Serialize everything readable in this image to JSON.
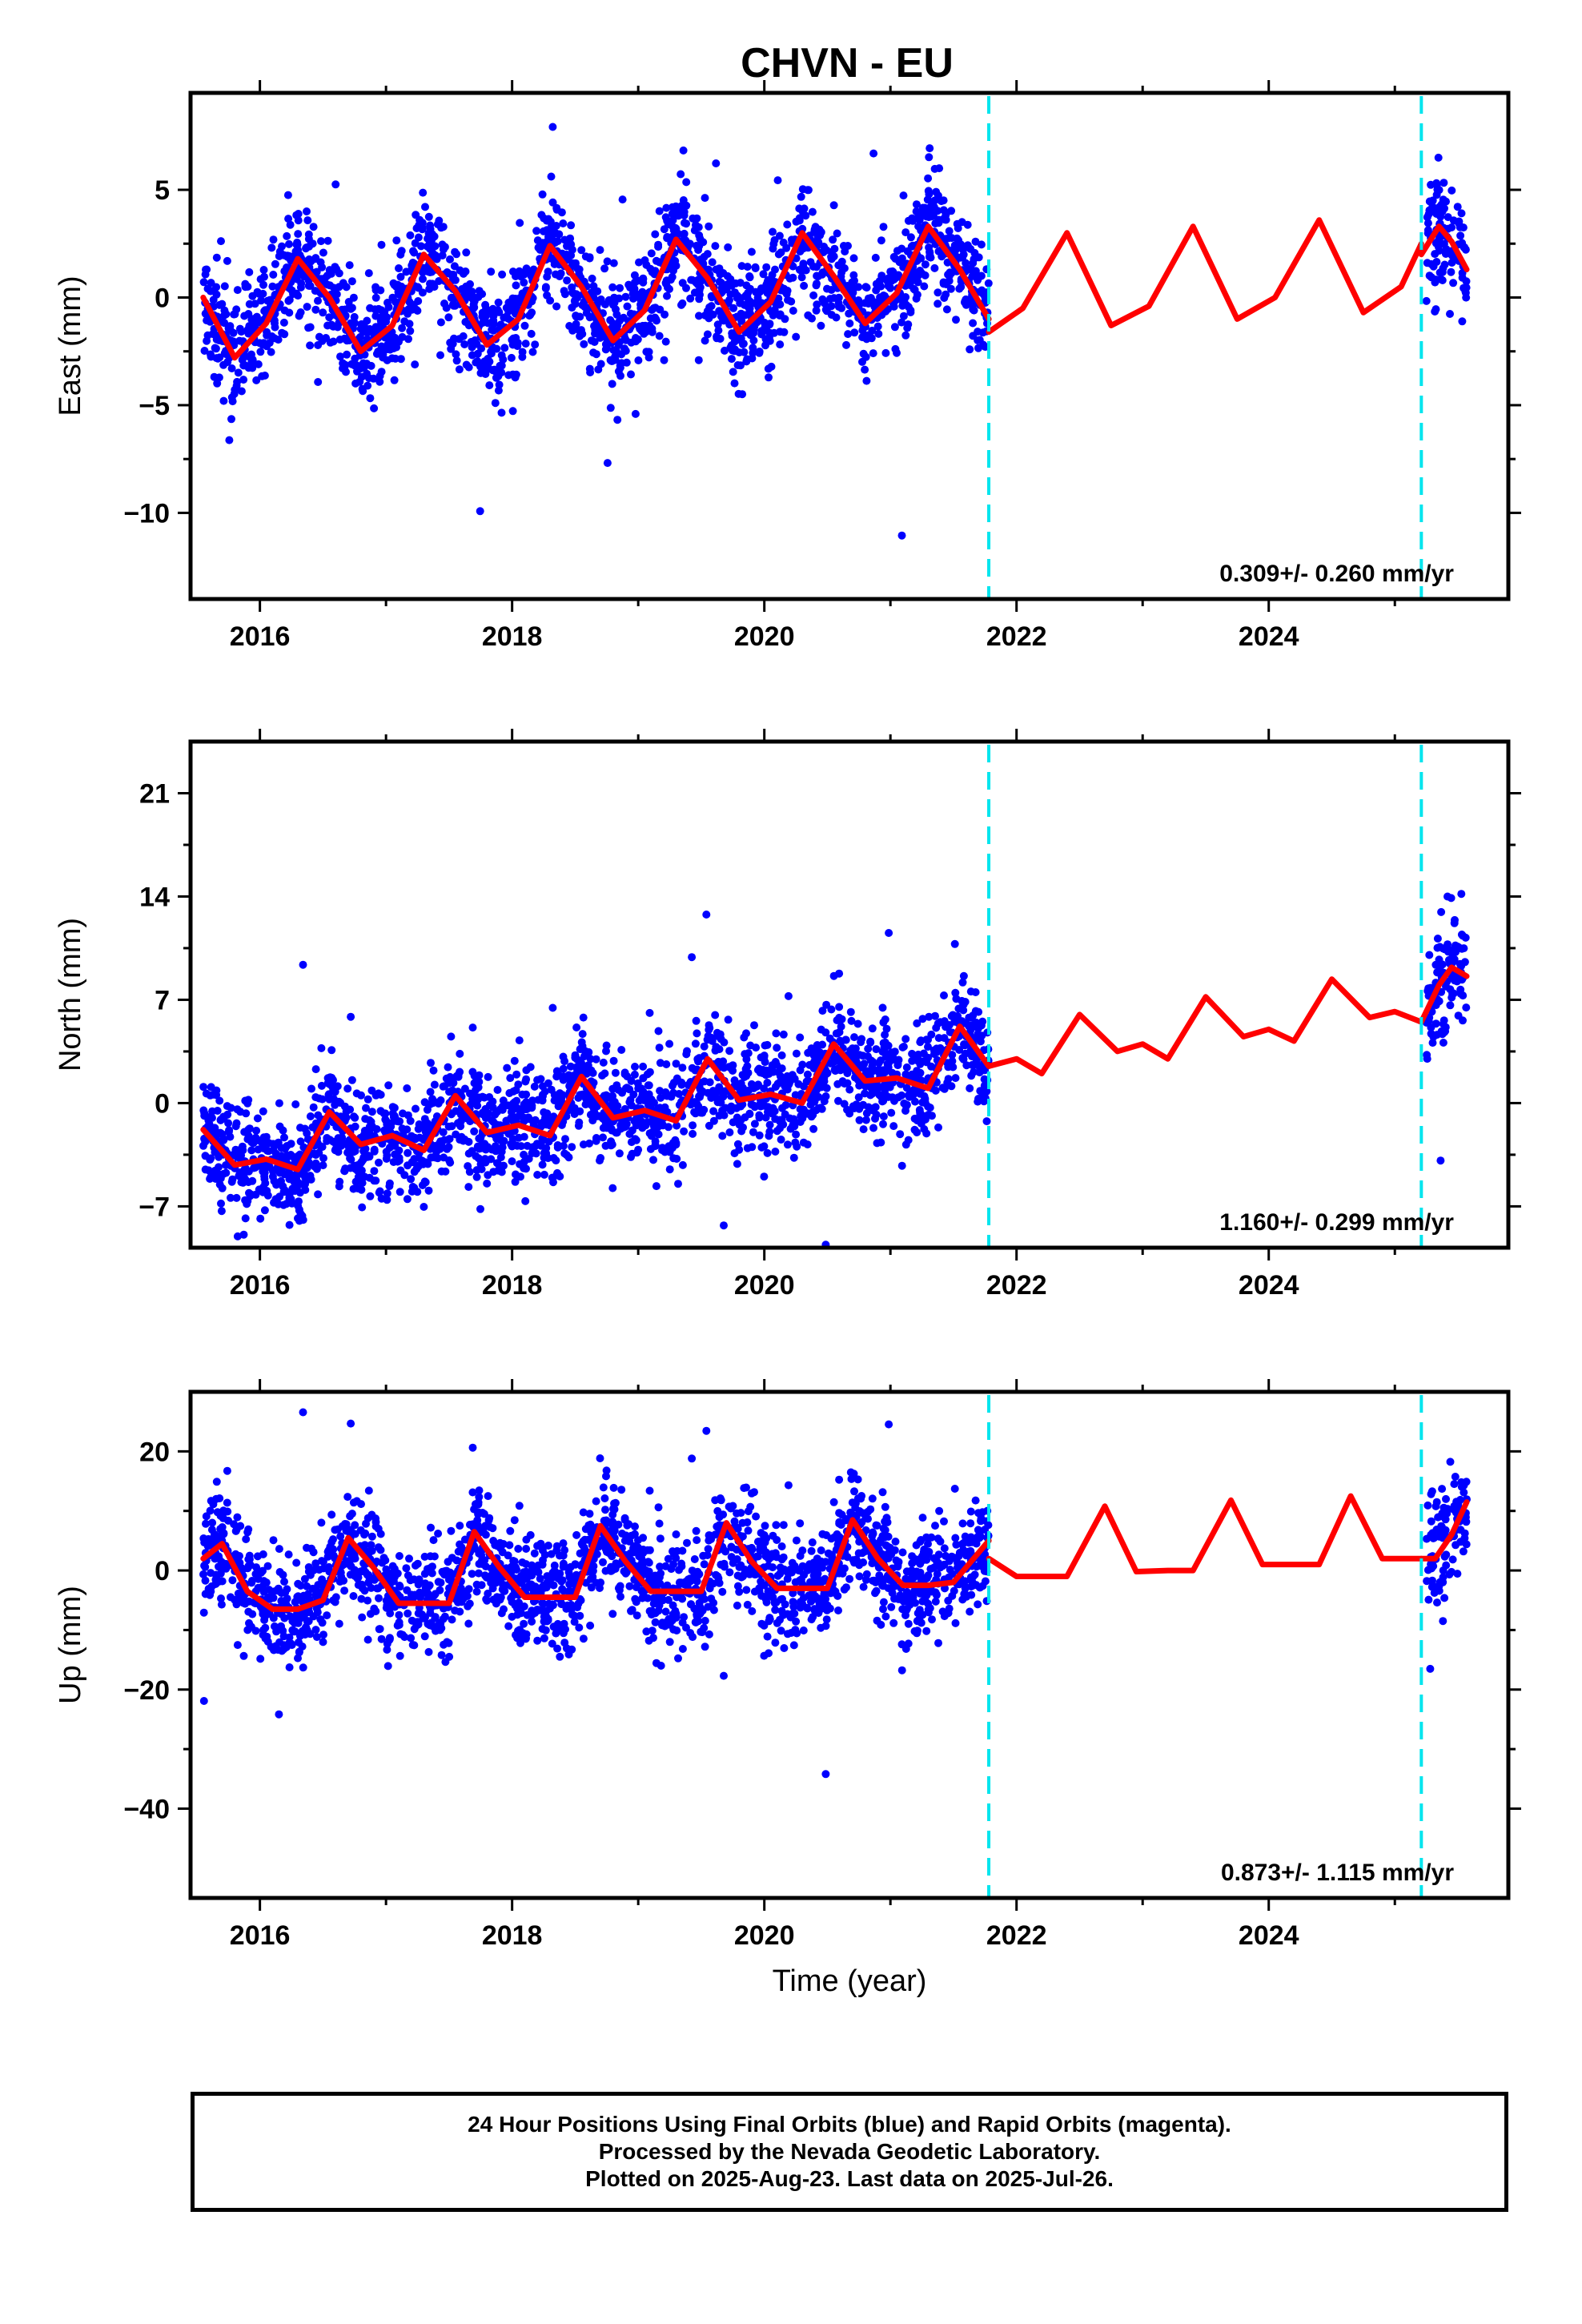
{
  "title": "CHVN - EU",
  "colors": {
    "data": "#0000ff",
    "model": "#ff0000",
    "break": "#00e5ee",
    "axis": "#000000"
  },
  "footer": {
    "lines": [
      "24 Hour Positions Using Final Orbits (blue) and Rapid Orbits (magenta).",
      "Processed by the Nevada Geodetic Laboratory.",
      "Plotted on 2025-Aug-23. Last data on 2025-Jul-26."
    ]
  },
  "chart_data": [
    {
      "type": "scatter",
      "name": "east",
      "ylabel": "East (mm)",
      "xlabel": "",
      "xlim": [
        2015.45,
        2025.9
      ],
      "ylim": [
        -14,
        9.5
      ],
      "xticks": [
        2016,
        2018,
        2020,
        2022,
        2024
      ],
      "yticks": [
        -10,
        -5,
        0,
        5
      ],
      "rate_label": "0.309+/- 0.260 mm/yr",
      "breaks": [
        2021.78,
        2025.21
      ],
      "data_ranges": [
        [
          2015.55,
          2021.78
        ],
        [
          2025.25,
          2025.57
        ]
      ],
      "model": {
        "segments": [
          {
            "x": [
              2015.55,
              2015.8,
              2016.05,
              2016.3,
              2016.55,
              2016.8,
              2017.05,
              2017.3,
              2017.55,
              2017.8,
              2018.05,
              2018.3,
              2018.55,
              2018.8,
              2019.05,
              2019.3,
              2019.55,
              2019.8,
              2020.05,
              2020.3,
              2020.55,
              2020.8,
              2021.05,
              2021.3,
              2021.55,
              2021.78
            ],
            "y": [
              0.0,
              -2.8,
              -1.2,
              1.8,
              0.0,
              -2.5,
              -1.3,
              2.0,
              0.3,
              -2.2,
              -1.0,
              2.4,
              0.5,
              -2.0,
              -0.6,
              2.7,
              0.9,
              -1.6,
              -0.2,
              3.0,
              1.0,
              -1.2,
              0.2,
              3.3,
              1.3,
              -1.0
            ]
          },
          {
            "x": [
              2021.78,
              2022.05,
              2022.4,
              2022.75,
              2023.05,
              2023.4,
              2023.75,
              2024.05,
              2024.4,
              2024.75,
              2025.05,
              2025.21
            ],
            "y": [
              -1.6,
              -0.5,
              3.0,
              -1.3,
              -0.4,
              3.3,
              -1.0,
              0.0,
              3.6,
              -0.7,
              0.5,
              2.5
            ]
          },
          {
            "x": [
              2025.21,
              2025.35,
              2025.45,
              2025.57
            ],
            "y": [
              2.0,
              3.3,
              2.6,
              1.3
            ]
          }
        ]
      }
    },
    {
      "type": "scatter",
      "name": "north",
      "ylabel": "North (mm)",
      "xlabel": "",
      "xlim": [
        2015.45,
        2025.9
      ],
      "ylim": [
        -9.8,
        24.5
      ],
      "xticks": [
        2016,
        2018,
        2020,
        2022,
        2024
      ],
      "yticks": [
        -7,
        0,
        7,
        14,
        21
      ],
      "rate_label": "1.160+/- 0.299 mm/yr",
      "breaks": [
        2021.78,
        2025.21
      ],
      "data_ranges": [
        [
          2015.55,
          2021.78
        ],
        [
          2025.25,
          2025.57
        ]
      ],
      "model": {
        "segments": [
          {
            "x": [
              2015.55,
              2015.8,
              2016.05,
              2016.3,
              2016.55,
              2016.8,
              2017.05,
              2017.3,
              2017.55,
              2017.8,
              2018.05,
              2018.3,
              2018.55,
              2018.8,
              2019.05,
              2019.3,
              2019.55,
              2019.8,
              2020.05,
              2020.3,
              2020.55,
              2020.8,
              2021.05,
              2021.3,
              2021.55,
              2021.78
            ],
            "y": [
              -1.8,
              -4.2,
              -3.8,
              -4.5,
              -0.6,
              -2.8,
              -2.2,
              -3.2,
              0.5,
              -2.0,
              -1.5,
              -2.2,
              1.8,
              -1.0,
              -0.5,
              -1.2,
              3.0,
              0.2,
              0.6,
              0.0,
              4.0,
              1.5,
              1.7,
              1.0,
              5.2,
              2.5
            ]
          },
          {
            "x": [
              2021.78,
              2022.0,
              2022.2,
              2022.5,
              2022.8,
              2023.0,
              2023.2,
              2023.5,
              2023.8,
              2024.0,
              2024.2,
              2024.5,
              2024.8,
              2025.0,
              2025.21
            ],
            "y": [
              2.5,
              3.0,
              2.0,
              6.0,
              3.5,
              4.0,
              3.0,
              7.2,
              4.5,
              5.0,
              4.2,
              8.4,
              5.8,
              6.2,
              5.5
            ]
          },
          {
            "x": [
              2025.21,
              2025.35,
              2025.45,
              2025.57
            ],
            "y": [
              5.5,
              8.0,
              9.2,
              8.6
            ]
          }
        ]
      }
    },
    {
      "type": "scatter",
      "name": "up",
      "ylabel": "Up (mm)",
      "xlabel": "Time (year)",
      "xlim": [
        2015.45,
        2025.9
      ],
      "ylim": [
        -55,
        30
      ],
      "xticks": [
        2016,
        2018,
        2020,
        2022,
        2024
      ],
      "yticks": [
        -40,
        -20,
        0,
        20
      ],
      "rate_label": "0.873+/- 1.115 mm/yr",
      "breaks": [
        2021.78,
        2025.21
      ],
      "data_ranges": [
        [
          2015.55,
          2021.78
        ],
        [
          2025.25,
          2025.57
        ]
      ],
      "model": {
        "segments": [
          {
            "x": [
              2015.55,
              2015.7,
              2015.9,
              2016.1,
              2016.3,
              2016.5,
              2016.7,
              2016.9,
              2017.1,
              2017.3,
              2017.5,
              2017.7,
              2017.9,
              2018.1,
              2018.3,
              2018.5,
              2018.7,
              2018.9,
              2019.1,
              2019.3,
              2019.5,
              2019.7,
              2019.9,
              2020.1,
              2020.3,
              2020.5,
              2020.7,
              2020.9,
              2021.1,
              2021.3,
              2021.5,
              2021.78
            ],
            "y": [
              2.0,
              4.5,
              -3.5,
              -6.5,
              -6.5,
              -5.0,
              5.5,
              0.5,
              -5.5,
              -5.5,
              -5.5,
              6.5,
              0.5,
              -4.5,
              -4.5,
              -4.5,
              7.5,
              1.5,
              -3.5,
              -3.5,
              -3.5,
              8.0,
              1.5,
              -3.0,
              -3.0,
              -3.0,
              8.5,
              2.0,
              -2.5,
              -2.5,
              -2.0,
              5.0
            ]
          },
          {
            "x": [
              2021.78,
              2022.0,
              2022.2,
              2022.4,
              2022.7,
              2022.95,
              2023.2,
              2023.4,
              2023.7,
              2023.95,
              2024.2,
              2024.4,
              2024.65,
              2024.9,
              2025.1,
              2025.21
            ],
            "y": [
              2.0,
              -1.0,
              -1.0,
              -1.0,
              10.8,
              -0.2,
              0.0,
              0.0,
              11.8,
              1.0,
              1.0,
              1.0,
              12.5,
              2.0,
              2.0,
              2.0
            ]
          },
          {
            "x": [
              2025.21,
              2025.32,
              2025.45,
              2025.57
            ],
            "y": [
              2.0,
              2.0,
              6.0,
              11.5
            ]
          }
        ]
      }
    }
  ]
}
